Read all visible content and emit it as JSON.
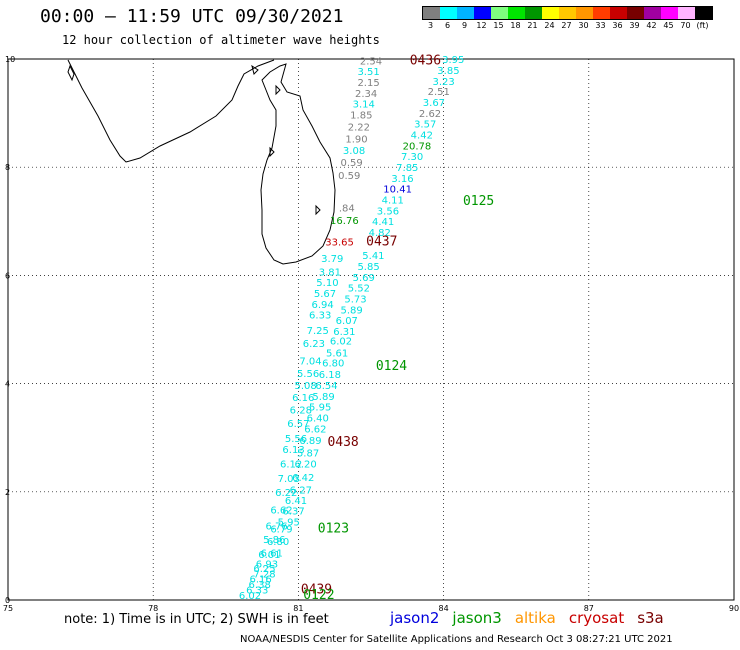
{
  "header": {
    "title": "00:00 – 11:59 UTC 09/30/2021",
    "subtitle": "12 hour collection of altimeter wave heights"
  },
  "colorbar": {
    "labels": [
      "3",
      "6",
      "9",
      "12",
      "15",
      "18",
      "21",
      "24",
      "27",
      "30",
      "33",
      "36",
      "39",
      "42",
      "45",
      "70",
      "(ft)"
    ],
    "colors": [
      "#7f7f7f",
      "#00ffff",
      "#00b4ff",
      "#0000ff",
      "#7fff7f",
      "#00e600",
      "#009600",
      "#ffff00",
      "#ffc800",
      "#ff9600",
      "#ff3c00",
      "#c80000",
      "#780000",
      "#a000a0",
      "#ff00ff",
      "#ffb4ff",
      "#000000"
    ]
  },
  "footer": {
    "note": "note:  1) Time is in UTC;  2) SWH is in feet",
    "credit": "NOAA/NESDIS Center for Satellite Applications and Research    Oct  3 08:27:21 UTC 2021"
  },
  "legend": [
    {
      "name": "jason2",
      "color": "#0000dc"
    },
    {
      "name": "jason3",
      "color": "#009600"
    },
    {
      "name": "altika",
      "color": "#ff9600"
    },
    {
      "name": "cryosat",
      "color": "#c80000"
    },
    {
      "name": "s3a",
      "color": "#780000"
    }
  ],
  "chart_data": {
    "type": "scatter",
    "xlim": [
      75,
      90
    ],
    "ylim": [
      0,
      10
    ],
    "x_ticks": [
      "75",
      "78",
      "81",
      "84",
      "87",
      "90"
    ],
    "y_ticks": [
      "0",
      "2",
      "4",
      "6",
      "8",
      "10"
    ],
    "grid": true,
    "track_labels": [
      {
        "text": "0436",
        "lon": 83.3,
        "lat": 9.9,
        "color": "#780000"
      },
      {
        "text": "0125",
        "lon": 84.4,
        "lat": 7.3,
        "color": "#009600"
      },
      {
        "text": "0437",
        "lon": 82.4,
        "lat": 6.55,
        "color": "#780000"
      },
      {
        "text": "0124",
        "lon": 82.6,
        "lat": 4.25,
        "color": "#009600"
      },
      {
        "text": "0438",
        "lon": 81.6,
        "lat": 2.85,
        "color": "#780000"
      },
      {
        "text": "0123",
        "lon": 81.4,
        "lat": 1.25,
        "color": "#009600"
      },
      {
        "text": "0439",
        "lon": 81.05,
        "lat": 0.12,
        "color": "#780000"
      },
      {
        "text": "0122",
        "lon": 81.1,
        "lat": 0.02,
        "color": "#009600"
      }
    ],
    "points": [
      {
        "text": "2.54",
        "lon": 82.5,
        "lat": 9.9,
        "color": "#7f7f7f"
      },
      {
        "text": "3.51",
        "lon": 82.45,
        "lat": 9.7,
        "color": "#00e0e0"
      },
      {
        "text": "2.15",
        "lon": 82.45,
        "lat": 9.5,
        "color": "#7f7f7f"
      },
      {
        "text": "2.34",
        "lon": 82.4,
        "lat": 9.3,
        "color": "#7f7f7f"
      },
      {
        "text": "3.14",
        "lon": 82.35,
        "lat": 9.1,
        "color": "#00e0e0"
      },
      {
        "text": "1.85",
        "lon": 82.3,
        "lat": 8.9,
        "color": "#7f7f7f"
      },
      {
        "text": "2.22",
        "lon": 82.25,
        "lat": 8.68,
        "color": "#7f7f7f"
      },
      {
        "text": "1.90",
        "lon": 82.2,
        "lat": 8.46,
        "color": "#7f7f7f"
      },
      {
        "text": "3.08",
        "lon": 82.15,
        "lat": 8.24,
        "color": "#00e0e0"
      },
      {
        "text": "0.59",
        "lon": 82.1,
        "lat": 8.02,
        "color": "#7f7f7f"
      },
      {
        "text": "0.59",
        "lon": 82.05,
        "lat": 7.78,
        "color": "#7f7f7f"
      },
      {
        "text": "3.95",
        "lon": 84.2,
        "lat": 9.93,
        "color": "#00e0e0"
      },
      {
        "text": "3.85",
        "lon": 84.1,
        "lat": 9.72,
        "color": "#00e0e0"
      },
      {
        "text": "3.23",
        "lon": 84.0,
        "lat": 9.52,
        "color": "#00e0e0"
      },
      {
        "text": "2.51",
        "lon": 83.9,
        "lat": 9.33,
        "color": "#7f7f7f"
      },
      {
        "text": "3.67",
        "lon": 83.8,
        "lat": 9.13,
        "color": "#00e0e0"
      },
      {
        "text": "2.62",
        "lon": 83.72,
        "lat": 8.93,
        "color": "#7f7f7f"
      },
      {
        "text": "3.57",
        "lon": 83.62,
        "lat": 8.73,
        "color": "#00e0e0"
      },
      {
        "text": "4.42",
        "lon": 83.55,
        "lat": 8.53,
        "color": "#00e0e0"
      },
      {
        "text": "20.78",
        "lon": 83.45,
        "lat": 8.33,
        "color": "#009600"
      },
      {
        "text": "7.30",
        "lon": 83.35,
        "lat": 8.13,
        "color": "#00e0e0"
      },
      {
        "text": "7.85",
        "lon": 83.25,
        "lat": 7.93,
        "color": "#00e0e0"
      },
      {
        "text": "3.16",
        "lon": 83.15,
        "lat": 7.73,
        "color": "#00e0e0"
      },
      {
        "text": "10.41",
        "lon": 83.05,
        "lat": 7.53,
        "color": "#0000dc"
      },
      {
        "text": "4.11",
        "lon": 82.95,
        "lat": 7.33,
        "color": "#00e0e0"
      },
      {
        "text": "3.56",
        "lon": 82.85,
        "lat": 7.13,
        "color": "#00e0e0"
      },
      {
        "text": "4.41",
        "lon": 82.75,
        "lat": 6.93,
        "color": "#00e0e0"
      },
      {
        "text": "4.82",
        "lon": 82.68,
        "lat": 6.73,
        "color": "#00e0e0"
      },
      {
        "text": ".84",
        "lon": 82.0,
        "lat": 7.18,
        "color": "#7f7f7f"
      },
      {
        "text": "16.76",
        "lon": 81.95,
        "lat": 6.95,
        "color": "#009600"
      },
      {
        "text": "33.65",
        "lon": 81.85,
        "lat": 6.55,
        "color": "#c80000"
      },
      {
        "text": "5.41",
        "lon": 82.55,
        "lat": 6.3,
        "color": "#00e0e0"
      },
      {
        "text": "3.79",
        "lon": 81.7,
        "lat": 6.25,
        "color": "#00e0e0"
      },
      {
        "text": "5.85",
        "lon": 82.45,
        "lat": 6.1,
        "color": "#00e0e0"
      },
      {
        "text": "3.81",
        "lon": 81.65,
        "lat": 6.0,
        "color": "#00e0e0"
      },
      {
        "text": "5.69",
        "lon": 82.35,
        "lat": 5.9,
        "color": "#00e0e0"
      },
      {
        "text": "5.10",
        "lon": 81.6,
        "lat": 5.8,
        "color": "#00e0e0"
      },
      {
        "text": "5.52",
        "lon": 82.25,
        "lat": 5.7,
        "color": "#00e0e0"
      },
      {
        "text": "5.67",
        "lon": 81.55,
        "lat": 5.6,
        "color": "#00e0e0"
      },
      {
        "text": "5.73",
        "lon": 82.18,
        "lat": 5.5,
        "color": "#00e0e0"
      },
      {
        "text": "6.94",
        "lon": 81.5,
        "lat": 5.4,
        "color": "#00e0e0"
      },
      {
        "text": "5.89",
        "lon": 82.1,
        "lat": 5.3,
        "color": "#00e0e0"
      },
      {
        "text": "6.33",
        "lon": 81.45,
        "lat": 5.2,
        "color": "#00e0e0"
      },
      {
        "text": "6.07",
        "lon": 82.0,
        "lat": 5.1,
        "color": "#00e0e0"
      },
      {
        "text": "6.31",
        "lon": 81.95,
        "lat": 4.9,
        "color": "#00e0e0"
      },
      {
        "text": "7.25",
        "lon": 81.4,
        "lat": 4.92,
        "color": "#00e0e0"
      },
      {
        "text": "6.02",
        "lon": 81.88,
        "lat": 4.72,
        "color": "#00e0e0"
      },
      {
        "text": "6.23",
        "lon": 81.32,
        "lat": 4.68,
        "color": "#00e0e0"
      },
      {
        "text": "5.61",
        "lon": 81.8,
        "lat": 4.5,
        "color": "#00e0e0"
      },
      {
        "text": "7.04",
        "lon": 81.25,
        "lat": 4.35,
        "color": "#00e0e0"
      },
      {
        "text": "6.80",
        "lon": 81.72,
        "lat": 4.32,
        "color": "#00e0e0"
      },
      {
        "text": "5.56",
        "lon": 81.2,
        "lat": 4.12,
        "color": "#00e0e0"
      },
      {
        "text": "6.18",
        "lon": 81.65,
        "lat": 4.1,
        "color": "#00e0e0"
      },
      {
        "text": "5.08",
        "lon": 81.15,
        "lat": 3.9,
        "color": "#00e0e0"
      },
      {
        "text": "6.54",
        "lon": 81.58,
        "lat": 3.9,
        "color": "#00e0e0"
      },
      {
        "text": "6.16",
        "lon": 81.1,
        "lat": 3.68,
        "color": "#00e0e0"
      },
      {
        "text": "5.89",
        "lon": 81.52,
        "lat": 3.7,
        "color": "#00e0e0"
      },
      {
        "text": "5.95",
        "lon": 81.45,
        "lat": 3.5,
        "color": "#00e0e0"
      },
      {
        "text": "6.28",
        "lon": 81.05,
        "lat": 3.45,
        "color": "#00e0e0"
      },
      {
        "text": "6.40",
        "lon": 81.4,
        "lat": 3.3,
        "color": "#00e0e0"
      },
      {
        "text": "6.57",
        "lon": 81.0,
        "lat": 3.2,
        "color": "#00e0e0"
      },
      {
        "text": "6.62",
        "lon": 81.35,
        "lat": 3.1,
        "color": "#00e0e0"
      },
      {
        "text": "5.56",
        "lon": 80.95,
        "lat": 2.92,
        "color": "#00e0e0"
      },
      {
        "text": "6.89",
        "lon": 81.25,
        "lat": 2.88,
        "color": "#00e0e0"
      },
      {
        "text": "6.13",
        "lon": 80.9,
        "lat": 2.72,
        "color": "#00e0e0"
      },
      {
        "text": "5.87",
        "lon": 81.2,
        "lat": 2.65,
        "color": "#00e0e0"
      },
      {
        "text": "6.12",
        "lon": 80.85,
        "lat": 2.45,
        "color": "#00e0e0"
      },
      {
        "text": "6.20",
        "lon": 81.15,
        "lat": 2.45,
        "color": "#00e0e0"
      },
      {
        "text": "7.03",
        "lon": 80.8,
        "lat": 2.18,
        "color": "#00e0e0"
      },
      {
        "text": "6.42",
        "lon": 81.1,
        "lat": 2.2,
        "color": "#00e0e0"
      },
      {
        "text": "6.27",
        "lon": 81.05,
        "lat": 1.97,
        "color": "#00e0e0"
      },
      {
        "text": "6.22",
        "lon": 80.75,
        "lat": 1.92,
        "color": "#00e0e0"
      },
      {
        "text": "6.41",
        "lon": 80.95,
        "lat": 1.77,
        "color": "#00e0e0"
      },
      {
        "text": "6.37",
        "lon": 80.9,
        "lat": 1.58,
        "color": "#00e0e0"
      },
      {
        "text": "6.62",
        "lon": 80.65,
        "lat": 1.6,
        "color": "#00e0e0"
      },
      {
        "text": "5.95",
        "lon": 80.8,
        "lat": 1.38,
        "color": "#00e0e0"
      },
      {
        "text": "6.76",
        "lon": 80.55,
        "lat": 1.3,
        "color": "#00e0e0"
      },
      {
        "text": "6.79",
        "lon": 80.65,
        "lat": 1.25,
        "color": "#00e0e0"
      },
      {
        "text": "5.86",
        "lon": 80.5,
        "lat": 1.05,
        "color": "#00e0e0"
      },
      {
        "text": "6.80",
        "lon": 80.58,
        "lat": 1.02,
        "color": "#00e0e0"
      },
      {
        "text": "6.61",
        "lon": 80.45,
        "lat": 0.8,
        "color": "#00e0e0"
      },
      {
        "text": "6.01",
        "lon": 80.4,
        "lat": 0.78,
        "color": "#00e0e0"
      },
      {
        "text": "6.93",
        "lon": 80.35,
        "lat": 0.6,
        "color": "#00e0e0"
      },
      {
        "text": "6.25",
        "lon": 80.3,
        "lat": 0.52,
        "color": "#00e0e0"
      },
      {
        "text": "7.28",
        "lon": 80.3,
        "lat": 0.42,
        "color": "#00e0e0"
      },
      {
        "text": "6.16",
        "lon": 80.22,
        "lat": 0.32,
        "color": "#00e0e0"
      },
      {
        "text": "6.38",
        "lon": 80.2,
        "lat": 0.22,
        "color": "#00e0e0"
      },
      {
        "text": "6.33",
        "lon": 80.15,
        "lat": 0.12,
        "color": "#00e0e0"
      },
      {
        "text": "6.02",
        "lon": 80.0,
        "lat": 0.02,
        "color": "#00e0e0"
      }
    ]
  }
}
